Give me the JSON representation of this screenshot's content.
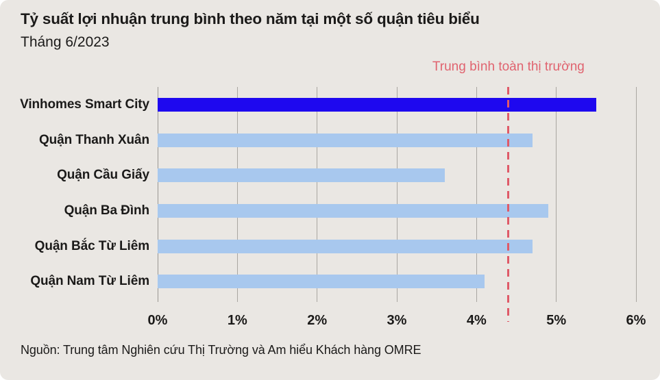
{
  "header": {
    "title": "Tỷ suất lợi nhuận trung bình theo năm tại một số quận tiêu biểu",
    "subtitle": "Tháng 6/2023"
  },
  "source": {
    "text": "Nguồn: Trung tâm Nghiên cứu Thị Trường và Am hiểu Khách hàng OMRE"
  },
  "chart_data": {
    "type": "bar",
    "orientation": "horizontal",
    "title": "Tỷ suất lợi nhuận trung bình theo năm tại một số quận tiêu biểu",
    "subtitle": "Tháng 6/2023",
    "unit": "%",
    "categories": [
      "Vinhomes Smart City",
      "Quận Thanh Xuân",
      "Quận Cầu Giấy",
      "Quận Ba Đình",
      "Quận Bắc Từ Liêm",
      "Quận Nam Từ Liêm"
    ],
    "values": [
      5.5,
      4.7,
      3.6,
      4.9,
      4.7,
      4.1
    ],
    "highlight_index": 0,
    "highlight_color": "#1e08ef",
    "bar_color": "#a8c8ee",
    "reference_line": {
      "label": "Trung bình toàn thị trường",
      "value": 4.4,
      "color": "#df5a68",
      "label_color": "#e0636f",
      "style": "dashed"
    },
    "xlim": [
      0,
      6
    ],
    "x_ticks": [
      "0%",
      "1%",
      "2%",
      "3%",
      "4%",
      "5%",
      "6%"
    ],
    "grid": true,
    "legend": "none"
  },
  "colors": {
    "background": "#eae7e3",
    "gridline": "#a9a6a1",
    "text": "#1b1a19"
  }
}
